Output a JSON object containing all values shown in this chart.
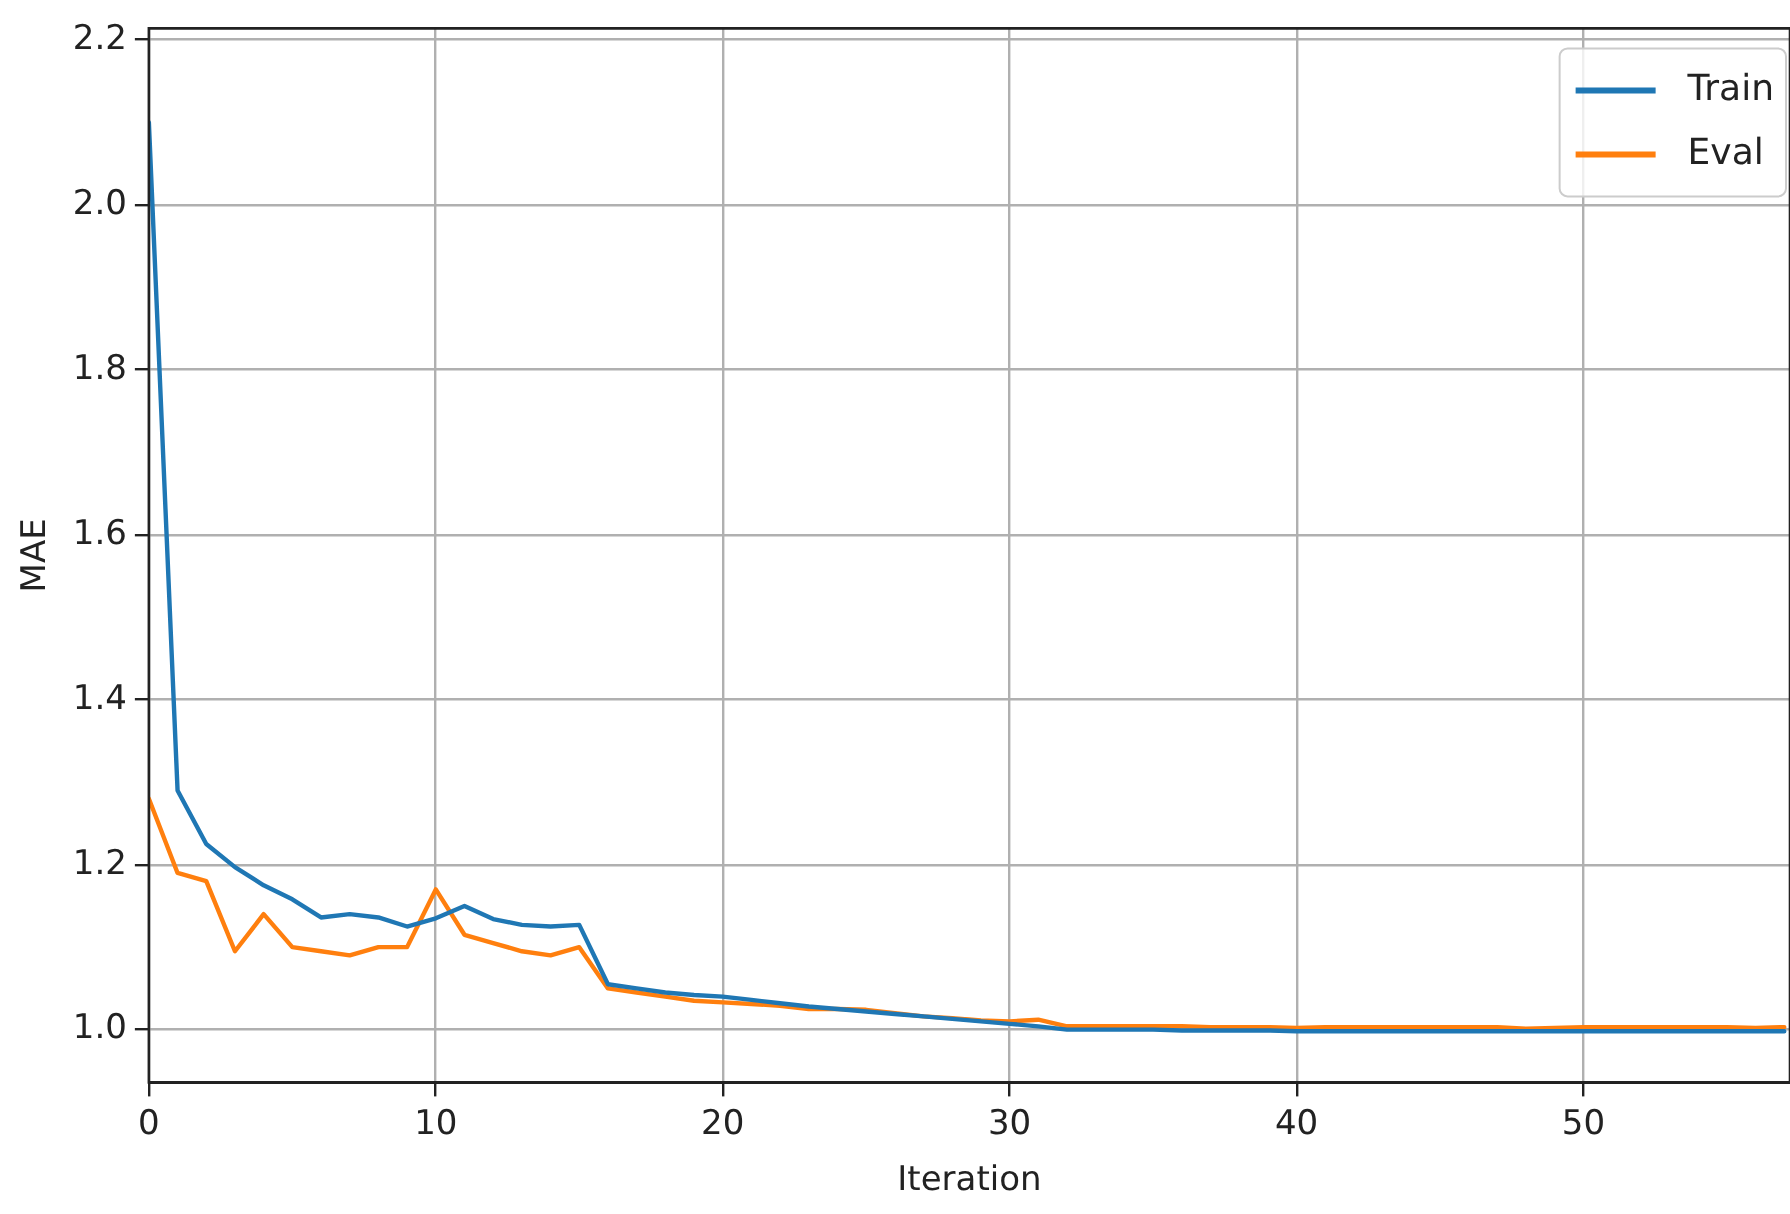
{
  "chart_data": {
    "type": "line",
    "xlabel": "Iteration",
    "ylabel": "MAE",
    "x": [
      0,
      1,
      2,
      3,
      4,
      5,
      6,
      7,
      8,
      9,
      10,
      11,
      12,
      13,
      14,
      15,
      16,
      17,
      18,
      19,
      20,
      21,
      22,
      23,
      24,
      25,
      26,
      27,
      28,
      29,
      30,
      31,
      32,
      33,
      34,
      35,
      36,
      37,
      38,
      39,
      40,
      41,
      42,
      43,
      44,
      45,
      46,
      47,
      48,
      49,
      50,
      51,
      52,
      53,
      54,
      55,
      56,
      57
    ],
    "series": [
      {
        "name": "Train",
        "color": "#1f77b4",
        "values": [
          2.1,
          1.29,
          1.225,
          1.197,
          1.175,
          1.158,
          1.136,
          1.14,
          1.136,
          1.125,
          1.135,
          1.15,
          1.134,
          1.127,
          1.125,
          1.127,
          1.055,
          1.05,
          1.045,
          1.042,
          1.04,
          1.036,
          1.032,
          1.028,
          1.025,
          1.022,
          1.019,
          1.016,
          1.013,
          1.01,
          1.007,
          1.004,
          1.0,
          1.0,
          1.0,
          1.0,
          0.999,
          0.999,
          0.999,
          0.999,
          0.998,
          0.998,
          0.998,
          0.998,
          0.998,
          0.998,
          0.998,
          0.998,
          0.998,
          0.998,
          0.998,
          0.998,
          0.998,
          0.998,
          0.998,
          0.998,
          0.998,
          0.998
        ]
      },
      {
        "name": "Eval",
        "color": "#ff7f0e",
        "values": [
          1.28,
          1.19,
          1.18,
          1.095,
          1.14,
          1.1,
          1.095,
          1.09,
          1.1,
          1.1,
          1.17,
          1.115,
          1.105,
          1.095,
          1.09,
          1.1,
          1.05,
          1.045,
          1.04,
          1.035,
          1.033,
          1.031,
          1.029,
          1.025,
          1.025,
          1.024,
          1.02,
          1.016,
          1.014,
          1.011,
          1.01,
          1.012,
          1.004,
          1.004,
          1.004,
          1.004,
          1.004,
          1.003,
          1.003,
          1.003,
          1.002,
          1.003,
          1.003,
          1.003,
          1.003,
          1.003,
          1.003,
          1.003,
          1.001,
          1.002,
          1.003,
          1.003,
          1.003,
          1.003,
          1.003,
          1.003,
          1.002,
          1.003
        ]
      }
    ],
    "xlim": [
      0,
      57.2
    ],
    "ylim": [
      0.936,
      2.214
    ],
    "xticks": [
      0,
      10,
      20,
      30,
      40,
      50
    ],
    "yticks": [
      {
        "value": 1,
        "label": "1.0"
      },
      1.2,
      1.4,
      1.6,
      1.8,
      {
        "value": 2,
        "label": "2.0"
      },
      2.2
    ],
    "grid": true,
    "legend": "top right"
  }
}
